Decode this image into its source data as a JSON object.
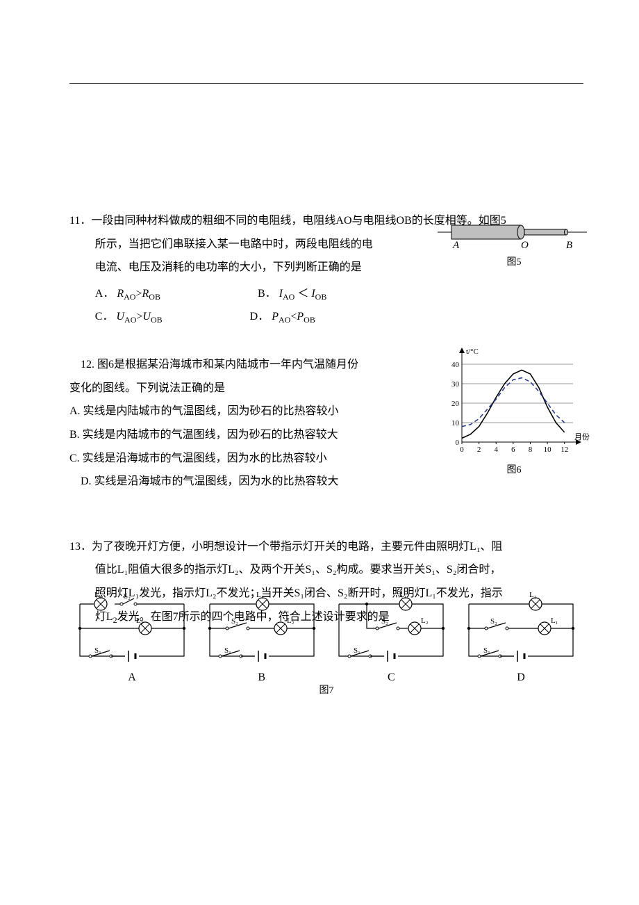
{
  "q11": {
    "number": "11．",
    "line1": "一段由同种材料做成的粗细不同的电阻线，电阻线AO与电阻线OB的长度相等。如图5",
    "line2": "所示，当把它们串联接入某一电路中时，两段电阻线的电",
    "line3": "电流、电压及消耗的电功率的大小，下列判断正确的是",
    "optA_pre": "A．",
    "optA_expr_l": "R",
    "optA_sub_l": "AO",
    "optA_op": ">",
    "optA_expr_r": "R",
    "optA_sub_r": "OB",
    "optB_pre": "B．",
    "optB_expr_l": "I",
    "optB_sub_l": "AO",
    "optB_op": " ＜ ",
    "optB_expr_r": "I",
    "optB_sub_r": "OB",
    "optC_pre": "C．",
    "optC_expr_l": "U",
    "optC_sub_l": "AO",
    "optC_op": ">",
    "optC_expr_r": "U",
    "optC_sub_r": "OB",
    "optD_pre": "D．",
    "optD_expr_l": "P",
    "optD_sub_l": "AO",
    "optD_op": "<",
    "optD_expr_r": "P",
    "optD_sub_r": "OB",
    "fig5": {
      "label": "图5",
      "A": "A",
      "O": "O",
      "B": "B",
      "wire_color": "#000000",
      "thick_fill": "#bfbfbf",
      "thin_fill": "#bfbfbf"
    }
  },
  "q12": {
    "intro1": "12. 图6是根据某沿海城市和某内陆城市一年内气温随月份",
    "intro2": "变化的图线。下列说法正确的是",
    "optA": "A. 实线是内陆城市的气温图线，因为砂石的比热容较小",
    "optB": "B. 实线是内陆城市的气温图线，因为砂石的比热容较大",
    "optC": "C. 实线是沿海城市的气温图线，因为水的比热容较小",
    "optD": "D. 实线是沿海城市的气温图线，因为水的比热容较大",
    "fig6": {
      "label": "图6",
      "ylabel": "t/°C",
      "xlabel": "月份",
      "xticks": [
        0,
        2,
        4,
        6,
        8,
        10,
        12
      ],
      "yticks": [
        0,
        10,
        20,
        30,
        40
      ],
      "ylim": [
        0,
        45
      ],
      "xlim": [
        0,
        13
      ],
      "axis_color": "#000000",
      "grid_color": "#000000",
      "solid_color": "#000000",
      "dashed_color": "#2b3a8f",
      "solid_points": [
        [
          0,
          2
        ],
        [
          1,
          4
        ],
        [
          2,
          8
        ],
        [
          3,
          15
        ],
        [
          4,
          23
        ],
        [
          5,
          30
        ],
        [
          6,
          35
        ],
        [
          7,
          37
        ],
        [
          8,
          35
        ],
        [
          9,
          28
        ],
        [
          10,
          18
        ],
        [
          11,
          10
        ],
        [
          12,
          5
        ]
      ],
      "dashed_points": [
        [
          0,
          8
        ],
        [
          1,
          9
        ],
        [
          2,
          12
        ],
        [
          3,
          17
        ],
        [
          4,
          22
        ],
        [
          5,
          28
        ],
        [
          6,
          32
        ],
        [
          7,
          33
        ],
        [
          8,
          31
        ],
        [
          9,
          26
        ],
        [
          10,
          20
        ],
        [
          11,
          14
        ],
        [
          12,
          10
        ]
      ]
    }
  },
  "q13": {
    "number": "13．",
    "line1": "为了夜晚开灯方便，小明想设计一个带指示灯开关的电路，主要元件由照明灯L₁、阻",
    "line2": "值比L₁阻值大很多的指示灯L₂、及两个开关S₁、S₂构成。要求当开关S₁、S₂闭合时，",
    "line3": "照明灯L₁发光，指示灯L₂不发光；当开关S₁闭合、S₂断开时，照明灯L₁不发光，指示",
    "line4_a": "灯L",
    "line4_b": "发光。在图7所示的四个电路中，符合上述设计要求的是",
    "line4_sub": "2",
    "fig_label": "图7",
    "letters": {
      "A": "A",
      "B": "B",
      "C": "C",
      "D": "D"
    },
    "circuit_labels": {
      "L1": "L₁",
      "L2": "L₂",
      "S1": "S₁",
      "S2": "S₂"
    },
    "stroke": "#000000"
  }
}
